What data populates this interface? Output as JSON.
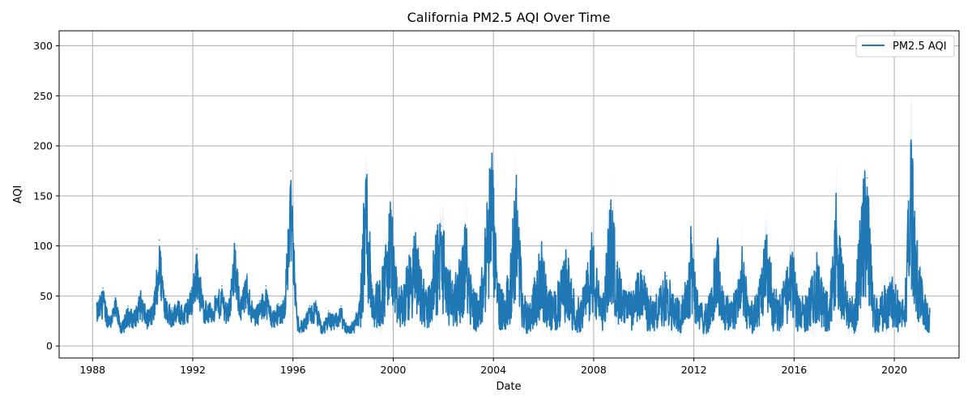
{
  "chart_data": {
    "type": "line",
    "title": "California PM2.5 AQI Over Time",
    "xlabel": "Date",
    "ylabel": "AQI",
    "xlim": [
      "1986-09-01",
      "2022-08-01"
    ],
    "ylim": [
      -12,
      315
    ],
    "x_ticks": [
      "1988",
      "1992",
      "1996",
      "2000",
      "2004",
      "2008",
      "2012",
      "2016",
      "2020"
    ],
    "y_ticks": [
      0,
      50,
      100,
      150,
      200,
      250,
      300
    ],
    "grid": true,
    "legend": {
      "position": "top-right",
      "entries": [
        "PM2.5 AQI"
      ]
    },
    "series": [
      {
        "name": "PM2.5 AQI",
        "color": "#1f77b4",
        "band_color": "#1f77b4",
        "x": [
          "1988-03",
          "1988-06",
          "1988-09",
          "1988-12",
          "1989-03",
          "1989-06",
          "1989-09",
          "1989-12",
          "1990-03",
          "1990-06",
          "1990-09",
          "1990-12",
          "1991-03",
          "1991-06",
          "1991-09",
          "1991-12",
          "1992-03",
          "1992-06",
          "1992-09",
          "1992-12",
          "1993-03",
          "1993-06",
          "1993-09",
          "1993-12",
          "1994-03",
          "1994-06",
          "1994-09",
          "1994-12",
          "1995-03",
          "1995-06",
          "1995-09",
          "1995-12",
          "1996-03",
          "1996-06",
          "1996-09",
          "1996-12",
          "1997-03",
          "1997-06",
          "1997-09",
          "1997-12",
          "1998-03",
          "1998-06",
          "1998-09",
          "1998-12",
          "1999-03",
          "1999-06",
          "1999-09",
          "1999-12",
          "2000-03",
          "2000-06",
          "2000-09",
          "2000-12",
          "2001-03",
          "2001-06",
          "2001-09",
          "2001-12",
          "2002-03",
          "2002-06",
          "2002-09",
          "2002-12",
          "2003-03",
          "2003-06",
          "2003-09",
          "2003-12",
          "2004-03",
          "2004-06",
          "2004-09",
          "2004-12",
          "2005-03",
          "2005-06",
          "2005-09",
          "2005-12",
          "2006-03",
          "2006-06",
          "2006-09",
          "2006-12",
          "2007-03",
          "2007-06",
          "2007-09",
          "2007-12",
          "2008-03",
          "2008-06",
          "2008-09",
          "2008-12",
          "2009-03",
          "2009-06",
          "2009-09",
          "2009-12",
          "2010-03",
          "2010-06",
          "2010-09",
          "2010-12",
          "2011-03",
          "2011-06",
          "2011-09",
          "2011-12",
          "2012-03",
          "2012-06",
          "2012-09",
          "2012-12",
          "2013-03",
          "2013-06",
          "2013-09",
          "2013-12",
          "2014-03",
          "2014-06",
          "2014-09",
          "2014-12",
          "2015-03",
          "2015-06",
          "2015-09",
          "2015-12",
          "2016-03",
          "2016-06",
          "2016-09",
          "2016-12",
          "2017-03",
          "2017-06",
          "2017-09",
          "2017-12",
          "2018-03",
          "2018-06",
          "2018-09",
          "2018-12",
          "2019-03",
          "2019-06",
          "2019-09",
          "2019-12",
          "2020-03",
          "2020-06",
          "2020-09",
          "2020-12",
          "2021-03",
          "2021-06"
        ],
        "y": [
          42,
          58,
          30,
          48,
          22,
          40,
          35,
          55,
          35,
          42,
          106,
          50,
          38,
          45,
          40,
          55,
          97,
          48,
          42,
          50,
          60,
          40,
          102,
          48,
          72,
          38,
          45,
          60,
          35,
          42,
          50,
          175,
          30,
          25,
          40,
          45,
          20,
          35,
          30,
          40,
          20,
          25,
          45,
          168,
          60,
          55,
          80,
          130,
          50,
          55,
          80,
          100,
          60,
          50,
          90,
          120,
          70,
          55,
          75,
          110,
          55,
          40,
          100,
          178,
          60,
          45,
          70,
          162,
          45,
          40,
          60,
          90,
          50,
          45,
          60,
          85,
          50,
          40,
          55,
          100,
          60,
          45,
          142,
          80,
          50,
          45,
          55,
          75,
          45,
          40,
          50,
          70,
          45,
          40,
          55,
          108,
          40,
          35,
          45,
          100,
          50,
          40,
          55,
          85,
          45,
          40,
          60,
          105,
          50,
          45,
          60,
          85,
          45,
          40,
          55,
          80,
          50,
          45,
          130,
          75,
          45,
          40,
          120,
          168,
          45,
          40,
          55,
          60,
          45,
          40,
          190,
          90,
          45,
          35
        ]
      }
    ]
  }
}
